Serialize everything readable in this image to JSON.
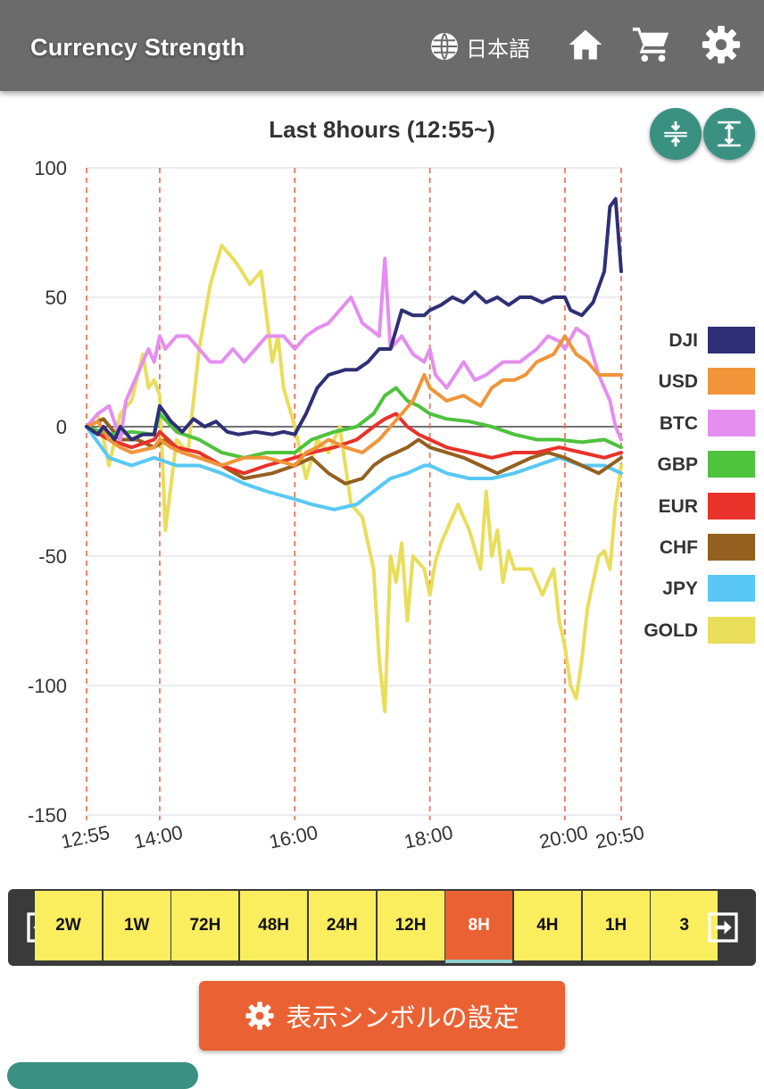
{
  "app": {
    "title": "Currency Strength",
    "language_label": "日本語",
    "icons": [
      "globe-icon",
      "home-icon",
      "cart-icon",
      "gear-icon"
    ]
  },
  "chart_data": {
    "type": "line",
    "title": "Last 8hours  (12:55~)",
    "ylim": [
      -150,
      100
    ],
    "yticks": [
      100,
      50,
      0,
      -50,
      -100,
      -150
    ],
    "xlim": [
      0,
      475
    ],
    "xticks": [
      {
        "label": "12:55",
        "value": 0
      },
      {
        "label": "14:00",
        "value": 65
      },
      {
        "label": "16:00",
        "value": 185
      },
      {
        "label": "18:00",
        "value": 305
      },
      {
        "label": "20:00",
        "value": 425
      },
      {
        "label": "20:50",
        "value": 475
      }
    ],
    "vlines": [
      0,
      65,
      185,
      305,
      425,
      475
    ],
    "zero_line": true,
    "series": [
      {
        "name": "DJI",
        "color": "#2e2f75",
        "x": [
          0,
          10,
          15,
          25,
          30,
          40,
          50,
          60,
          65,
          75,
          85,
          95,
          105,
          115,
          125,
          135,
          150,
          165,
          175,
          185,
          195,
          205,
          215,
          230,
          240,
          250,
          260,
          270,
          280,
          290,
          300,
          305,
          315,
          325,
          335,
          345,
          355,
          365,
          375,
          385,
          395,
          405,
          415,
          425,
          430,
          440,
          450,
          460,
          465,
          470,
          475
        ],
        "y": [
          0,
          -3,
          0,
          -5,
          0,
          -5,
          -3,
          -3,
          8,
          2,
          -2,
          3,
          0,
          2,
          -2,
          -3,
          -2,
          -3,
          -2,
          -3,
          5,
          15,
          20,
          22,
          22,
          25,
          30,
          30,
          45,
          43,
          43,
          45,
          47,
          50,
          48,
          52,
          48,
          50,
          47,
          50,
          50,
          48,
          50,
          50,
          45,
          43,
          48,
          60,
          85,
          88,
          60
        ]
      },
      {
        "name": "USD",
        "color": "#f0953a",
        "x": [
          0,
          10,
          20,
          30,
          40,
          60,
          65,
          75,
          85,
          100,
          120,
          140,
          160,
          185,
          195,
          205,
          215,
          230,
          245,
          260,
          270,
          280,
          290,
          300,
          305,
          320,
          335,
          350,
          360,
          370,
          380,
          390,
          400,
          415,
          425,
          435,
          445,
          455,
          465,
          475
        ],
        "y": [
          0,
          2,
          -5,
          -8,
          -10,
          -8,
          -5,
          -8,
          -10,
          -12,
          -15,
          -12,
          -12,
          -15,
          -10,
          -8,
          -5,
          -8,
          -10,
          -5,
          0,
          5,
          10,
          20,
          15,
          10,
          12,
          8,
          15,
          18,
          18,
          20,
          25,
          28,
          35,
          28,
          25,
          20,
          20,
          20
        ]
      },
      {
        "name": "BTC",
        "color": "#e48ef0",
        "x": [
          0,
          10,
          20,
          30,
          35,
          45,
          55,
          60,
          65,
          70,
          80,
          90,
          110,
          120,
          130,
          140,
          150,
          160,
          175,
          185,
          195,
          205,
          215,
          225,
          235,
          245,
          260,
          265,
          270,
          280,
          290,
          300,
          305,
          310,
          320,
          335,
          345,
          355,
          370,
          385,
          400,
          410,
          420,
          425,
          435,
          445,
          455,
          465,
          470,
          475
        ],
        "y": [
          0,
          5,
          8,
          -5,
          10,
          20,
          30,
          25,
          35,
          30,
          35,
          35,
          25,
          25,
          30,
          25,
          30,
          35,
          35,
          30,
          35,
          38,
          40,
          45,
          50,
          40,
          35,
          65,
          30,
          35,
          28,
          25,
          30,
          20,
          15,
          25,
          18,
          20,
          25,
          25,
          30,
          35,
          33,
          30,
          38,
          35,
          20,
          10,
          0,
          -5
        ]
      },
      {
        "name": "GBP",
        "color": "#4fc23e",
        "x": [
          0,
          20,
          40,
          60,
          65,
          80,
          100,
          120,
          140,
          160,
          185,
          200,
          220,
          240,
          255,
          265,
          275,
          285,
          295,
          305,
          320,
          340,
          360,
          380,
          400,
          420,
          440,
          460,
          475
        ],
        "y": [
          0,
          -3,
          -2,
          -3,
          5,
          -2,
          -5,
          -10,
          -12,
          -10,
          -10,
          -5,
          -2,
          0,
          5,
          12,
          15,
          10,
          8,
          5,
          3,
          2,
          0,
          -3,
          -5,
          -5,
          -6,
          -5,
          -8
        ]
      },
      {
        "name": "EUR",
        "color": "#e8322a",
        "x": [
          0,
          20,
          40,
          60,
          65,
          80,
          100,
          120,
          140,
          160,
          185,
          200,
          220,
          240,
          255,
          265,
          275,
          285,
          295,
          305,
          320,
          340,
          360,
          380,
          400,
          420,
          440,
          460,
          475
        ],
        "y": [
          0,
          -5,
          -8,
          -5,
          -2,
          -8,
          -10,
          -15,
          -18,
          -15,
          -12,
          -10,
          -8,
          -5,
          0,
          3,
          5,
          0,
          -3,
          -5,
          -8,
          -10,
          -12,
          -10,
          -10,
          -8,
          -10,
          -12,
          -10
        ]
      },
      {
        "name": "CHF",
        "color": "#946020",
        "x": [
          0,
          15,
          30,
          45,
          60,
          70,
          85,
          100,
          120,
          140,
          165,
          185,
          200,
          215,
          230,
          245,
          255,
          265,
          275,
          285,
          295,
          305,
          320,
          335,
          350,
          365,
          380,
          395,
          410,
          425,
          440,
          455,
          465,
          475
        ],
        "y": [
          0,
          3,
          -5,
          -5,
          -8,
          -5,
          -10,
          -12,
          -15,
          -20,
          -18,
          -15,
          -12,
          -18,
          -22,
          -20,
          -15,
          -12,
          -10,
          -8,
          -5,
          -8,
          -10,
          -12,
          -15,
          -18,
          -15,
          -12,
          -10,
          -12,
          -15,
          -18,
          -15,
          -12
        ]
      },
      {
        "name": "JPY",
        "color": "#5ac8f5",
        "x": [
          0,
          20,
          40,
          60,
          80,
          100,
          120,
          140,
          160,
          185,
          200,
          220,
          240,
          255,
          270,
          285,
          300,
          305,
          320,
          340,
          360,
          380,
          400,
          420,
          440,
          460,
          475
        ],
        "y": [
          0,
          -12,
          -15,
          -12,
          -15,
          -15,
          -18,
          -22,
          -25,
          -28,
          -30,
          -32,
          -30,
          -25,
          -20,
          -18,
          -15,
          -15,
          -18,
          -20,
          -20,
          -18,
          -15,
          -12,
          -15,
          -15,
          -18
        ]
      },
      {
        "name": "GOLD",
        "color": "#e8de5a",
        "x": [
          0,
          10,
          20,
          30,
          40,
          50,
          55,
          60,
          65,
          70,
          80,
          90,
          100,
          110,
          120,
          130,
          135,
          145,
          155,
          165,
          170,
          175,
          185,
          195,
          205,
          215,
          225,
          235,
          245,
          255,
          260,
          265,
          270,
          275,
          280,
          285,
          290,
          300,
          305,
          310,
          315,
          320,
          330,
          340,
          350,
          355,
          360,
          365,
          370,
          375,
          380,
          385,
          395,
          405,
          415,
          420,
          425,
          430,
          435,
          440,
          445,
          450,
          455,
          460,
          465,
          470,
          475
        ],
        "y": [
          0,
          5,
          -15,
          5,
          10,
          28,
          15,
          18,
          12,
          -40,
          -5,
          -10,
          30,
          55,
          70,
          65,
          62,
          55,
          60,
          25,
          35,
          15,
          0,
          -20,
          -5,
          -10,
          0,
          -30,
          -35,
          -55,
          -90,
          -110,
          -50,
          -60,
          -45,
          -75,
          -50,
          -55,
          -65,
          -52,
          -45,
          -40,
          -30,
          -40,
          -55,
          -25,
          -50,
          -40,
          -60,
          -48,
          -55,
          -55,
          -55,
          -65,
          -55,
          -75,
          -85,
          -100,
          -105,
          -90,
          -70,
          -60,
          -50,
          -48,
          -55,
          -30,
          -15
        ]
      }
    ]
  },
  "range_selector": {
    "items": [
      "2W",
      "1W",
      "72H",
      "48H",
      "24H",
      "12H",
      "8H",
      "4H",
      "1H",
      "3"
    ],
    "active": "8H"
  },
  "settings_button": {
    "label": "表示シンボルの設定"
  }
}
